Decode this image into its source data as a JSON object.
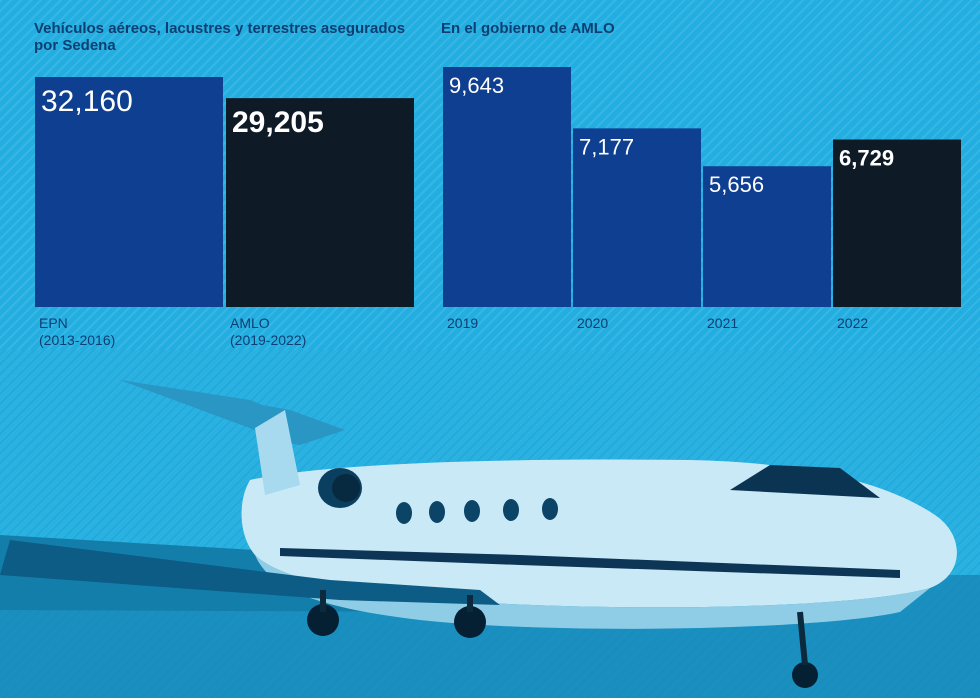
{
  "colors": {
    "background": "#22aee0",
    "bar_blue": "#0f3f91",
    "bar_black": "#0e1a25",
    "label_text": "#0d3f73",
    "value_white": "#ffffff"
  },
  "chart_data": [
    {
      "type": "bar",
      "title": "Vehículos aéreos, lacustres y terrestres asegurados por Sedena",
      "categories": [
        "EPN\n(2013-2016)",
        "AMLO\n(2019-2022)"
      ],
      "values": [
        32160,
        29205
      ],
      "value_labels": [
        "32,160",
        "29,205"
      ],
      "bar_colors": [
        "#0f3f91",
        "#0e1a25"
      ],
      "highlight": [
        false,
        true
      ],
      "ylim": [
        0,
        32160
      ]
    },
    {
      "type": "bar",
      "title": "En el gobierno de AMLO",
      "categories": [
        "2019",
        "2020",
        "2021",
        "2022"
      ],
      "values": [
        9643,
        7177,
        5656,
        6729
      ],
      "value_labels": [
        "9,643",
        "7,177",
        "5,656",
        "6,729"
      ],
      "bar_colors": [
        "#0f3f91",
        "#0f3f91",
        "#0f3f91",
        "#0e1a25"
      ],
      "highlight": [
        false,
        false,
        false,
        true
      ],
      "ylim": [
        0,
        9643
      ]
    }
  ],
  "photo": {
    "subject": "private jet on tarmac",
    "icon": "airplane-photo-icon"
  }
}
